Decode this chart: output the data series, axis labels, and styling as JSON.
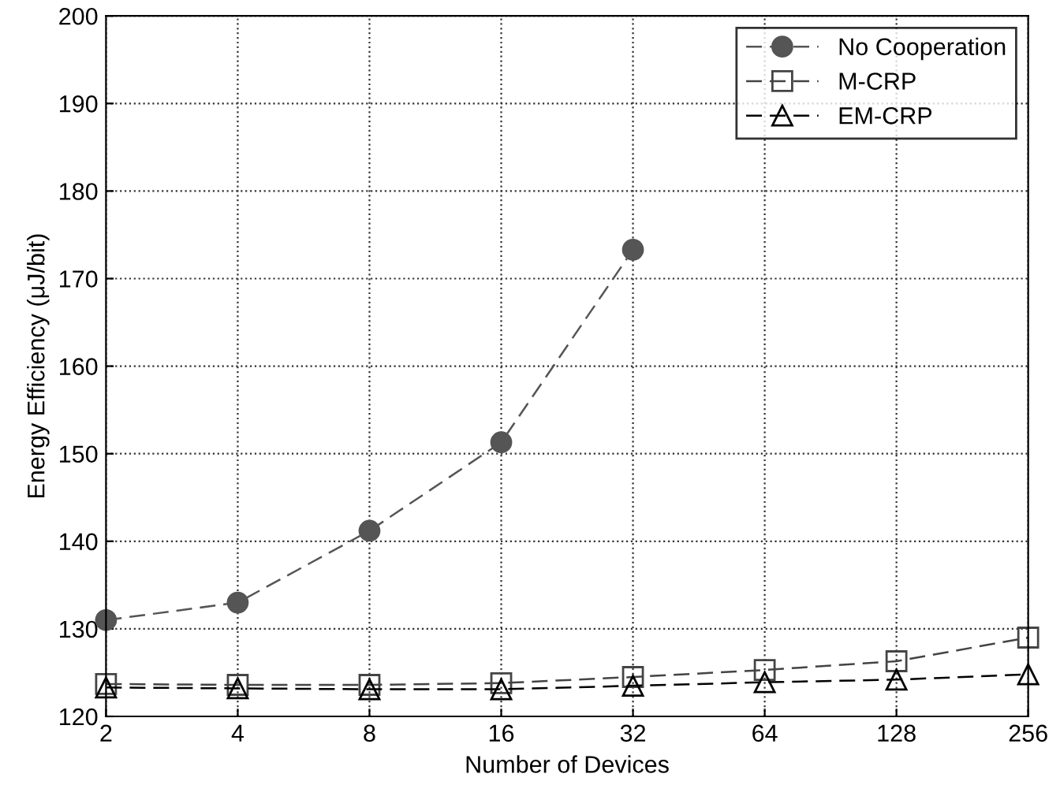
{
  "chart_data": {
    "type": "line",
    "xlabel": "Number of Devices",
    "ylabel": "Energy Efficiency (μJ/bit)",
    "x": [
      2,
      4,
      8,
      16,
      32,
      64,
      128,
      256
    ],
    "log": "x",
    "xlim": [
      2,
      256
    ],
    "xticks": [
      2,
      4,
      8,
      16,
      32,
      64,
      128,
      256
    ],
    "ylim": [
      120,
      200
    ],
    "yticks": [
      120,
      130,
      140,
      150,
      160,
      170,
      180,
      190,
      200
    ],
    "grid": true,
    "legend": "top right",
    "line_style": "dashed",
    "series": [
      {
        "name": "No Cooperation",
        "color": "#555555",
        "marker": "circle",
        "values": [
          131,
          133,
          141.2,
          151.3,
          173.3,
          null,
          null,
          null
        ]
      },
      {
        "name": "M-CRP",
        "color": "#444444",
        "marker": "square",
        "values": [
          123.7,
          123.6,
          123.6,
          123.8,
          124.5,
          125.3,
          126.3,
          129
        ]
      },
      {
        "name": "EM-CRP",
        "color": "#000000",
        "marker": "triangle",
        "values": [
          123.3,
          123.2,
          123.1,
          123.1,
          123.5,
          123.9,
          124.2,
          124.8
        ]
      }
    ]
  }
}
